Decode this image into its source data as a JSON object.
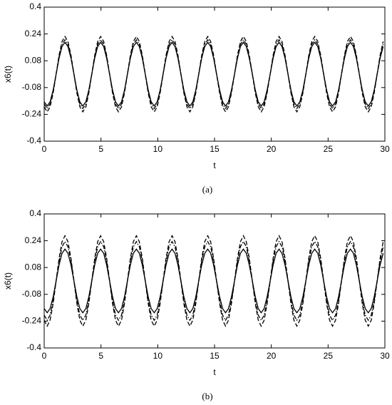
{
  "chart_data": [
    {
      "type": "line",
      "caption": "(a)",
      "xlabel": "t",
      "ylabel": "x6(t)",
      "xlim": [
        0,
        30
      ],
      "xticks": [
        0,
        5,
        10,
        15,
        20,
        25,
        30
      ],
      "ylim": [
        -0.4,
        0.4
      ],
      "yticks": [
        -0.4,
        -0.24,
        -0.08,
        0.08,
        0.24,
        0.4
      ],
      "grid": false,
      "x": [
        0,
        0.26,
        0.52,
        0.79,
        1.05,
        1.31,
        1.57,
        1.83,
        2.09,
        2.36,
        2.62,
        2.88,
        3.14,
        3.4,
        3.67,
        3.93,
        4.19,
        4.45,
        4.71,
        4.97,
        5.24,
        5.5,
        5.76,
        6.02,
        6.28,
        6.54,
        6.81,
        7.07,
        7.33,
        7.59,
        7.85,
        8.12,
        8.38,
        8.64,
        8.9,
        9.16,
        9.42,
        9.69,
        9.95,
        10.21,
        10.47,
        10.73,
        11.0,
        11.26,
        11.52,
        11.78,
        12.04,
        12.3,
        12.57,
        12.83,
        13.09,
        13.35,
        13.61,
        13.87,
        14.14,
        14.4,
        14.66,
        14.92,
        15.18,
        15.45,
        15.71,
        15.97,
        16.23,
        16.49,
        16.76,
        17.02,
        17.28,
        17.54,
        17.8,
        18.06,
        18.33,
        18.59,
        18.85,
        19.11,
        19.37,
        19.63,
        19.9,
        20.16,
        20.42,
        20.68,
        20.94,
        21.21,
        21.47,
        21.73,
        21.99,
        22.25,
        22.51,
        22.78,
        23.04,
        23.3,
        23.56,
        23.82,
        24.09,
        24.35,
        24.61,
        24.87,
        25.13,
        25.39,
        25.66,
        25.92,
        26.18,
        26.44,
        26.7,
        26.97,
        27.23,
        27.49,
        27.75,
        28.01,
        28.27,
        28.54,
        28.8,
        29.06,
        29.32,
        29.58,
        29.85
      ],
      "series": [
        {
          "color": "#000000",
          "line_style": "solid",
          "values": [
            -0.165,
            -0.19,
            -0.165,
            -0.095,
            0,
            0.095,
            0.165,
            0.19,
            0.165,
            0.095,
            0,
            -0.095,
            -0.165,
            -0.19,
            -0.165,
            -0.095,
            0,
            0.095,
            0.165,
            0.19,
            0.165,
            0.095,
            0,
            -0.095,
            -0.165,
            -0.19,
            -0.165,
            -0.095,
            0,
            0.095,
            0.165,
            0.19,
            0.165,
            0.095,
            0,
            -0.095,
            -0.165,
            -0.19,
            -0.165,
            -0.095,
            0,
            0.095,
            0.165,
            0.19,
            0.165,
            0.095,
            0,
            -0.095,
            -0.165,
            -0.19,
            -0.165,
            -0.095,
            0,
            0.095,
            0.165,
            0.19,
            0.165,
            0.095,
            0,
            -0.095,
            -0.165,
            -0.19,
            -0.165,
            -0.095,
            0,
            0.095,
            0.165,
            0.19,
            0.165,
            0.095,
            0,
            -0.095,
            -0.165,
            -0.19,
            -0.165,
            -0.095,
            0,
            0.095,
            0.165,
            0.19,
            0.165,
            0.095,
            0,
            -0.095,
            -0.165,
            -0.19,
            -0.165,
            -0.095,
            0,
            0.095,
            0.165,
            0.19,
            0.165,
            0.095,
            0,
            -0.095,
            -0.165,
            -0.19,
            -0.165,
            -0.095,
            0,
            0.095,
            0.165,
            0.19,
            0.165,
            0.095,
            0,
            -0.095,
            -0.165,
            -0.19,
            -0.165,
            -0.095,
            0,
            0.095,
            0.165
          ]
        },
        {
          "color": "#000000",
          "line_style": "dashed",
          "values": [
            -0.195,
            -0.225,
            -0.195,
            -0.113,
            0,
            0.113,
            0.195,
            0.225,
            0.195,
            0.113,
            0,
            -0.113,
            -0.195,
            -0.225,
            -0.195,
            -0.113,
            0,
            0.113,
            0.195,
            0.225,
            0.195,
            0.113,
            0,
            -0.113,
            -0.195,
            -0.225,
            -0.195,
            -0.113,
            0,
            0.113,
            0.195,
            0.225,
            0.195,
            0.113,
            0,
            -0.113,
            -0.195,
            -0.225,
            -0.195,
            -0.113,
            0,
            0.113,
            0.195,
            0.225,
            0.195,
            0.113,
            0,
            -0.113,
            -0.195,
            -0.225,
            -0.195,
            -0.113,
            0,
            0.113,
            0.195,
            0.225,
            0.195,
            0.113,
            0,
            -0.113,
            -0.195,
            -0.225,
            -0.195,
            -0.113,
            0,
            0.113,
            0.195,
            0.225,
            0.195,
            0.113,
            0,
            -0.113,
            -0.195,
            -0.225,
            -0.195,
            -0.113,
            0,
            0.113,
            0.195,
            0.225,
            0.195,
            0.113,
            0,
            -0.113,
            -0.195,
            -0.225,
            -0.195,
            -0.113,
            0,
            0.113,
            0.195,
            0.225,
            0.195,
            0.113,
            0,
            -0.113,
            -0.195,
            -0.225,
            -0.195,
            -0.113,
            0,
            0.113,
            0.195,
            0.225,
            0.195,
            0.113,
            0,
            -0.113,
            -0.195,
            -0.225,
            -0.195,
            -0.113,
            0,
            0.113,
            0.195
          ]
        },
        {
          "color": "#000000",
          "line_style": "dashdot",
          "values": [
            -0.178,
            -0.205,
            -0.178,
            -0.103,
            0,
            0.103,
            0.178,
            0.205,
            0.178,
            0.103,
            0,
            -0.103,
            -0.178,
            -0.205,
            -0.178,
            -0.103,
            0,
            0.103,
            0.178,
            0.205,
            0.178,
            0.103,
            0,
            -0.103,
            -0.178,
            -0.205,
            -0.178,
            -0.103,
            0,
            0.103,
            0.178,
            0.205,
            0.178,
            0.103,
            0,
            -0.103,
            -0.178,
            -0.205,
            -0.178,
            -0.103,
            0,
            0.103,
            0.178,
            0.205,
            0.178,
            0.103,
            0,
            -0.103,
            -0.178,
            -0.205,
            -0.178,
            -0.103,
            0,
            0.103,
            0.178,
            0.205,
            0.178,
            0.103,
            0,
            -0.103,
            -0.178,
            -0.205,
            -0.178,
            -0.103,
            0,
            0.103,
            0.178,
            0.205,
            0.178,
            0.103,
            0,
            -0.103,
            -0.178,
            -0.205,
            -0.178,
            -0.103,
            0,
            0.103,
            0.178,
            0.205,
            0.178,
            0.103,
            0,
            -0.103,
            -0.178,
            -0.205,
            -0.178,
            -0.103,
            0,
            0.103,
            0.178,
            0.205,
            0.178,
            0.103,
            0,
            -0.103,
            -0.178,
            -0.205,
            -0.178,
            -0.103,
            0,
            0.103,
            0.178,
            0.205,
            0.178,
            0.103,
            0,
            -0.103,
            -0.178,
            -0.205,
            -0.178,
            -0.103,
            0,
            0.103,
            0.178
          ]
        }
      ]
    },
    {
      "type": "line",
      "caption": "(b)",
      "xlabel": "t",
      "ylabel": "x6(t)",
      "xlim": [
        0,
        30
      ],
      "xticks": [
        0,
        5,
        10,
        15,
        20,
        25,
        30
      ],
      "ylim": [
        -0.4,
        0.4
      ],
      "yticks": [
        -0.4,
        -0.24,
        -0.08,
        0.08,
        0.24,
        0.4
      ],
      "grid": false,
      "x": [
        0,
        0.26,
        0.52,
        0.79,
        1.05,
        1.31,
        1.57,
        1.83,
        2.09,
        2.36,
        2.62,
        2.88,
        3.14,
        3.4,
        3.67,
        3.93,
        4.19,
        4.45,
        4.71,
        4.97,
        5.24,
        5.5,
        5.76,
        6.02,
        6.28,
        6.54,
        6.81,
        7.07,
        7.33,
        7.59,
        7.85,
        8.12,
        8.38,
        8.64,
        8.9,
        9.16,
        9.42,
        9.69,
        9.95,
        10.21,
        10.47,
        10.73,
        11.0,
        11.26,
        11.52,
        11.78,
        12.04,
        12.3,
        12.57,
        12.83,
        13.09,
        13.35,
        13.61,
        13.87,
        14.14,
        14.4,
        14.66,
        14.92,
        15.18,
        15.45,
        15.71,
        15.97,
        16.23,
        16.49,
        16.76,
        17.02,
        17.28,
        17.54,
        17.8,
        18.06,
        18.33,
        18.59,
        18.85,
        19.11,
        19.37,
        19.63,
        19.9,
        20.16,
        20.42,
        20.68,
        20.94,
        21.21,
        21.47,
        21.73,
        21.99,
        22.25,
        22.51,
        22.78,
        23.04,
        23.3,
        23.56,
        23.82,
        24.09,
        24.35,
        24.61,
        24.87,
        25.13,
        25.39,
        25.66,
        25.92,
        26.18,
        26.44,
        26.7,
        26.97,
        27.23,
        27.49,
        27.75,
        28.01,
        28.27,
        28.54,
        28.8,
        29.06,
        29.32,
        29.58,
        29.85
      ],
      "series": [
        {
          "color": "#000000",
          "line_style": "solid",
          "values": [
            -0.165,
            -0.19,
            -0.165,
            -0.095,
            0,
            0.095,
            0.165,
            0.19,
            0.165,
            0.095,
            0,
            -0.095,
            -0.165,
            -0.19,
            -0.165,
            -0.095,
            0,
            0.095,
            0.165,
            0.19,
            0.165,
            0.095,
            0,
            -0.095,
            -0.165,
            -0.19,
            -0.165,
            -0.095,
            0,
            0.095,
            0.165,
            0.19,
            0.165,
            0.095,
            0,
            -0.095,
            -0.165,
            -0.19,
            -0.165,
            -0.095,
            0,
            0.095,
            0.165,
            0.19,
            0.165,
            0.095,
            0,
            -0.095,
            -0.165,
            -0.19,
            -0.165,
            -0.095,
            0,
            0.095,
            0.165,
            0.19,
            0.165,
            0.095,
            0,
            -0.095,
            -0.165,
            -0.19,
            -0.165,
            -0.095,
            0,
            0.095,
            0.165,
            0.19,
            0.165,
            0.095,
            0,
            -0.095,
            -0.165,
            -0.19,
            -0.165,
            -0.095,
            0,
            0.095,
            0.165,
            0.19,
            0.165,
            0.095,
            0,
            -0.095,
            -0.165,
            -0.19,
            -0.165,
            -0.095,
            0,
            0.095,
            0.165,
            0.19,
            0.165,
            0.095,
            0,
            -0.095,
            -0.165,
            -0.19,
            -0.165,
            -0.095,
            0,
            0.095,
            0.165,
            0.19,
            0.165,
            0.095,
            0,
            -0.095,
            -0.165,
            -0.19,
            -0.165,
            -0.095,
            0,
            0.095,
            0.165
          ]
        },
        {
          "color": "#000000",
          "line_style": "dashed",
          "values": [
            -0.234,
            -0.27,
            -0.234,
            -0.135,
            0,
            0.135,
            0.234,
            0.27,
            0.234,
            0.135,
            0,
            -0.135,
            -0.234,
            -0.27,
            -0.234,
            -0.135,
            0,
            0.135,
            0.234,
            0.27,
            0.234,
            0.135,
            0,
            -0.135,
            -0.234,
            -0.27,
            -0.234,
            -0.135,
            0,
            0.135,
            0.234,
            0.27,
            0.234,
            0.135,
            0,
            -0.135,
            -0.234,
            -0.27,
            -0.234,
            -0.135,
            0,
            0.135,
            0.234,
            0.27,
            0.234,
            0.135,
            0,
            -0.135,
            -0.234,
            -0.27,
            -0.234,
            -0.135,
            0,
            0.135,
            0.234,
            0.27,
            0.234,
            0.135,
            0,
            -0.135,
            -0.234,
            -0.27,
            -0.234,
            -0.135,
            0,
            0.135,
            0.234,
            0.27,
            0.234,
            0.135,
            0,
            -0.135,
            -0.234,
            -0.27,
            -0.234,
            -0.135,
            0,
            0.135,
            0.234,
            0.27,
            0.234,
            0.135,
            0,
            -0.135,
            -0.234,
            -0.27,
            -0.234,
            -0.135,
            0,
            0.135,
            0.234,
            0.27,
            0.234,
            0.135,
            0,
            -0.135,
            -0.234,
            -0.27,
            -0.234,
            -0.135,
            0,
            0.135,
            0.234,
            0.27,
            0.234,
            0.135,
            0,
            -0.135,
            -0.234,
            -0.27,
            -0.234,
            -0.135,
            0,
            0.135,
            0.234
          ]
        },
        {
          "color": "#000000",
          "line_style": "dashdot",
          "values": [
            -0.204,
            -0.235,
            -0.204,
            -0.118,
            0,
            0.118,
            0.204,
            0.235,
            0.204,
            0.118,
            0,
            -0.118,
            -0.204,
            -0.235,
            -0.204,
            -0.118,
            0,
            0.118,
            0.204,
            0.235,
            0.204,
            0.118,
            0,
            -0.118,
            -0.204,
            -0.235,
            -0.204,
            -0.118,
            0,
            0.118,
            0.204,
            0.235,
            0.204,
            0.118,
            0,
            -0.118,
            -0.204,
            -0.235,
            -0.204,
            -0.118,
            0,
            0.118,
            0.204,
            0.235,
            0.204,
            0.118,
            0,
            -0.118,
            -0.204,
            -0.235,
            -0.204,
            -0.118,
            0,
            0.118,
            0.204,
            0.235,
            0.204,
            0.118,
            0,
            -0.118,
            -0.204,
            -0.235,
            -0.204,
            -0.118,
            0,
            0.118,
            0.204,
            0.235,
            0.204,
            0.118,
            0,
            -0.118,
            -0.204,
            -0.235,
            -0.204,
            -0.118,
            0,
            0.118,
            0.204,
            0.235,
            0.204,
            0.118,
            0,
            -0.118,
            -0.204,
            -0.235,
            -0.204,
            -0.118,
            0,
            0.118,
            0.204,
            0.235,
            0.204,
            0.118,
            0,
            -0.118,
            -0.204,
            -0.235,
            -0.204,
            -0.118,
            0,
            0.118,
            0.204,
            0.235,
            0.204,
            0.118,
            0,
            -0.118,
            -0.204,
            -0.235,
            -0.204,
            -0.118,
            0,
            0.118,
            0.204
          ]
        }
      ]
    }
  ]
}
